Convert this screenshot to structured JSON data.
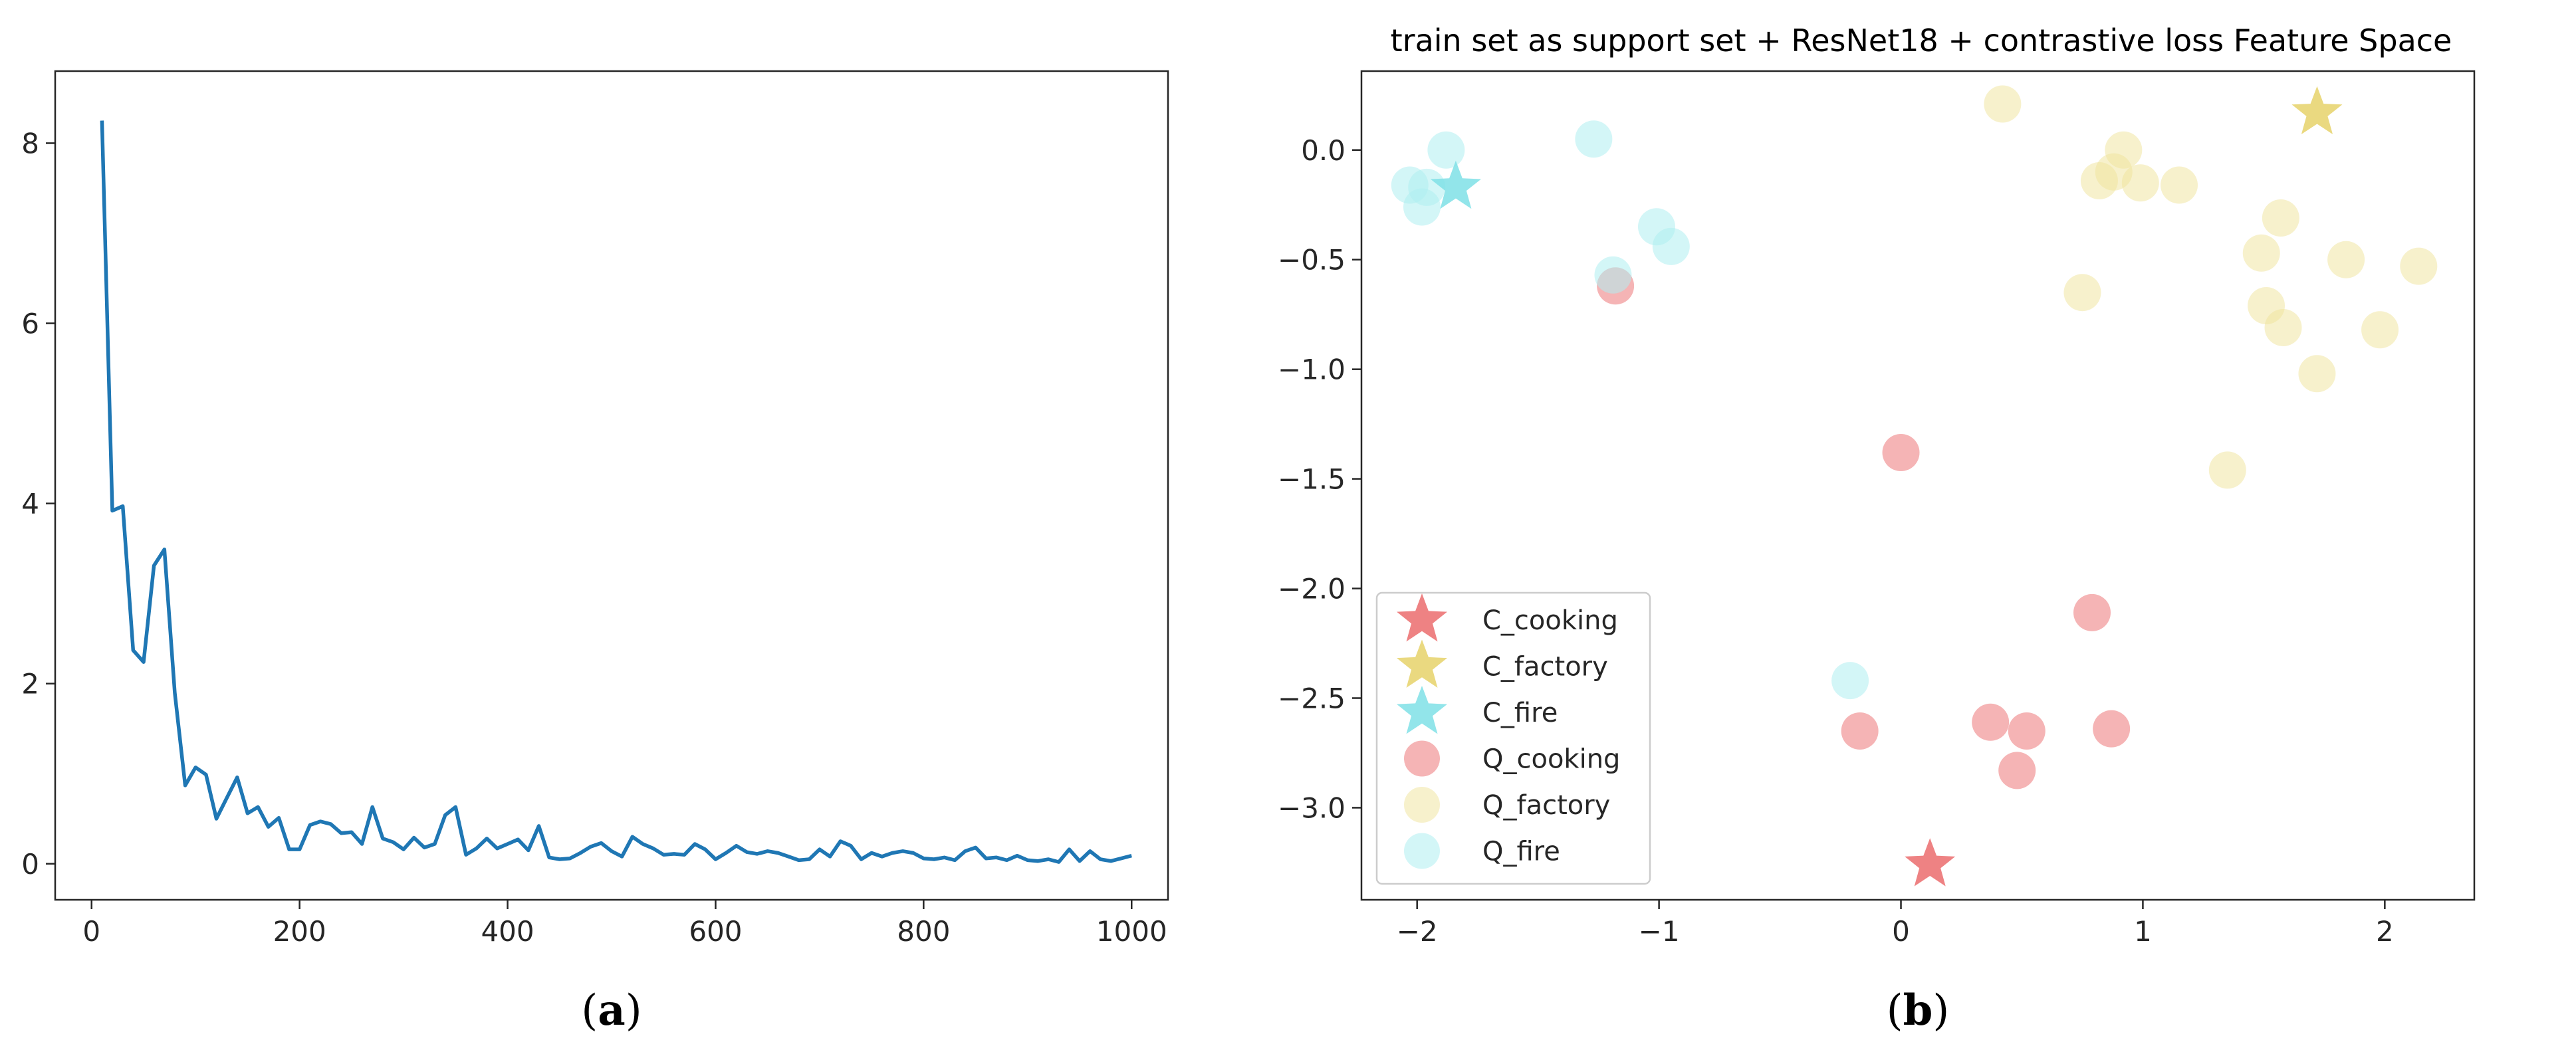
{
  "captions": {
    "a": {
      "open": "(",
      "letter": "a",
      "close": ")"
    },
    "b": {
      "open": "(",
      "letter": "b",
      "close": ")"
    }
  },
  "chart_data": [
    {
      "type": "line",
      "title": "",
      "xlabel": "",
      "ylabel": "",
      "xlim": [
        -35,
        1035
      ],
      "ylim": [
        -0.4,
        8.8
      ],
      "xticks": [
        0,
        200,
        400,
        600,
        800,
        1000
      ],
      "yticks": [
        0,
        2,
        4,
        6,
        8
      ],
      "grid": false,
      "colors": {
        "line": "#1f77b4"
      },
      "series": [
        {
          "x": [
            10,
            20,
            30,
            40,
            50,
            60,
            70,
            80,
            90,
            100,
            110,
            120,
            130,
            140,
            150,
            160,
            170,
            180,
            190,
            200,
            210,
            220,
            230,
            240,
            250,
            260,
            270,
            280,
            290,
            300,
            310,
            320,
            330,
            340,
            350,
            360,
            370,
            380,
            390,
            400,
            410,
            420,
            430,
            440,
            450,
            460,
            470,
            480,
            490,
            500,
            510,
            520,
            530,
            540,
            550,
            560,
            570,
            580,
            590,
            600,
            610,
            620,
            630,
            640,
            650,
            660,
            670,
            680,
            690,
            700,
            710,
            720,
            730,
            740,
            750,
            760,
            770,
            780,
            790,
            800,
            810,
            820,
            830,
            840,
            850,
            860,
            870,
            880,
            890,
            900,
            910,
            920,
            930,
            940,
            950,
            960,
            970,
            980,
            990,
            1000
          ],
          "values": [
            8.25,
            3.92,
            3.97,
            2.37,
            2.24,
            3.31,
            3.49,
            1.9,
            0.87,
            1.07,
            0.99,
            0.5,
            0.73,
            0.96,
            0.56,
            0.63,
            0.41,
            0.51,
            0.16,
            0.16,
            0.43,
            0.47,
            0.44,
            0.34,
            0.35,
            0.22,
            0.63,
            0.28,
            0.24,
            0.16,
            0.29,
            0.18,
            0.22,
            0.54,
            0.63,
            0.1,
            0.17,
            0.28,
            0.17,
            0.22,
            0.27,
            0.15,
            0.42,
            0.07,
            0.05,
            0.06,
            0.12,
            0.19,
            0.23,
            0.14,
            0.08,
            0.3,
            0.22,
            0.17,
            0.1,
            0.11,
            0.1,
            0.22,
            0.16,
            0.05,
            0.12,
            0.2,
            0.13,
            0.11,
            0.14,
            0.12,
            0.08,
            0.04,
            0.05,
            0.16,
            0.08,
            0.25,
            0.2,
            0.05,
            0.12,
            0.08,
            0.12,
            0.14,
            0.12,
            0.06,
            0.05,
            0.07,
            0.04,
            0.14,
            0.18,
            0.06,
            0.07,
            0.04,
            0.09,
            0.04,
            0.03,
            0.05,
            0.02,
            0.16,
            0.03,
            0.14,
            0.05,
            0.03,
            0.06,
            0.09
          ]
        }
      ]
    },
    {
      "type": "scatter",
      "title": "train set as support set + ResNet18 + contrastive loss Feature Space",
      "xlabel": "",
      "ylabel": "",
      "xlim": [
        -2.23,
        2.37
      ],
      "ylim": [
        -3.42,
        0.36
      ],
      "xticks": [
        -2,
        -1,
        0,
        1,
        2
      ],
      "yticks": [
        0.0,
        -0.5,
        -1.0,
        -1.5,
        -2.0,
        -2.5,
        -3.0
      ],
      "xtick_labels": [
        "−2",
        "−1",
        "0",
        "1",
        "2"
      ],
      "ytick_labels": [
        "0.0",
        "−0.5",
        "−1.0",
        "−1.5",
        "−2.0",
        "−2.5",
        "−3.0"
      ],
      "grid": false,
      "legend_position": "lower-left",
      "series": [
        {
          "name": "C_cooking",
          "marker": "star",
          "color": "#e8585a",
          "alpha": 0.75,
          "points": [
            [
              0.12,
              -3.26
            ]
          ]
        },
        {
          "name": "C_factory",
          "marker": "star",
          "color": "#e6d26a",
          "alpha": 0.85,
          "points": [
            [
              1.72,
              0.17
            ]
          ]
        },
        {
          "name": "C_fire",
          "marker": "star",
          "color": "#7fe0e6",
          "alpha": 0.85,
          "points": [
            [
              -1.84,
              -0.17
            ]
          ]
        },
        {
          "name": "Q_cooking",
          "marker": "circle",
          "color": "#e8585a",
          "alpha": 0.45,
          "points": [
            [
              -1.18,
              -0.62
            ],
            [
              0.0,
              -1.38
            ],
            [
              0.79,
              -2.11
            ],
            [
              -0.17,
              -2.65
            ],
            [
              0.37,
              -2.61
            ],
            [
              0.52,
              -2.65
            ],
            [
              0.87,
              -2.64
            ],
            [
              0.48,
              -2.83
            ]
          ]
        },
        {
          "name": "Q_factory",
          "marker": "circle",
          "color": "#efe39a",
          "alpha": 0.5,
          "points": [
            [
              0.42,
              0.21
            ],
            [
              0.92,
              0.0
            ],
            [
              0.82,
              -0.14
            ],
            [
              0.88,
              -0.1
            ],
            [
              0.99,
              -0.15
            ],
            [
              1.15,
              -0.16
            ],
            [
              1.57,
              -0.31
            ],
            [
              1.49,
              -0.47
            ],
            [
              1.84,
              -0.5
            ],
            [
              2.14,
              -0.53
            ],
            [
              0.75,
              -0.65
            ],
            [
              1.51,
              -0.71
            ],
            [
              1.58,
              -0.81
            ],
            [
              1.98,
              -0.82
            ],
            [
              1.72,
              -1.02
            ],
            [
              1.35,
              -1.46
            ]
          ]
        },
        {
          "name": "Q_fire",
          "marker": "circle",
          "color": "#aeeef0",
          "alpha": 0.55,
          "points": [
            [
              -1.27,
              0.05
            ],
            [
              -1.88,
              0.0
            ],
            [
              -2.03,
              -0.16
            ],
            [
              -1.96,
              -0.17
            ],
            [
              -1.98,
              -0.26
            ],
            [
              -1.01,
              -0.35
            ],
            [
              -0.95,
              -0.44
            ],
            [
              -1.19,
              -0.57
            ],
            [
              -0.21,
              -2.42
            ]
          ]
        }
      ]
    }
  ]
}
